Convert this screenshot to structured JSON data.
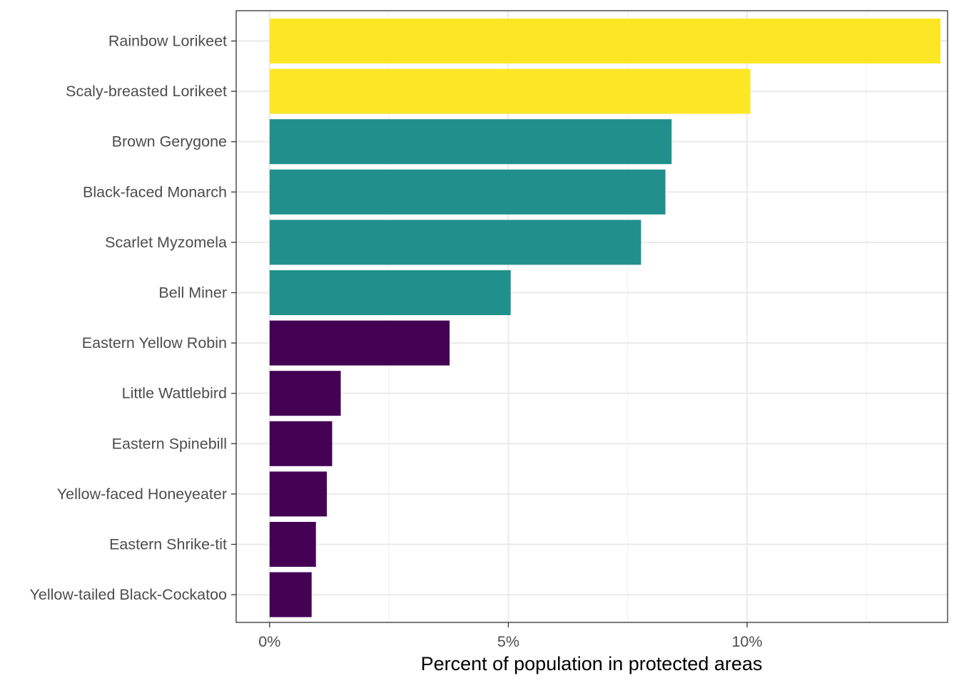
{
  "chart_data": {
    "type": "bar",
    "orientation": "horizontal",
    "title": "",
    "xlabel": "Percent of population in protected areas",
    "ylabel": "",
    "xlim": [
      -0.7,
      14.2
    ],
    "x_ticks": [
      0,
      5,
      10
    ],
    "x_tick_labels": [
      "0%",
      "5%",
      "10%"
    ],
    "grid": true,
    "legend": "none",
    "categories": [
      "Rainbow Lorikeet",
      "Scaly-breasted Lorikeet",
      "Brown Gerygone",
      "Black-faced Monarch",
      "Scarlet Myzomela",
      "Bell Miner",
      "Eastern Yellow Robin",
      "Little Wattlebird",
      "Eastern Spinebill",
      "Yellow-faced Honeyeater",
      "Eastern Shrike-tit",
      "Yellow-tailed Black-Cockatoo"
    ],
    "values": [
      14.05,
      10.07,
      8.42,
      8.29,
      7.78,
      5.05,
      3.77,
      1.49,
      1.31,
      1.2,
      0.97,
      0.88
    ],
    "bar_colors": [
      "#FDE725",
      "#FDE725",
      "#21908C",
      "#21908C",
      "#21908C",
      "#21908C",
      "#440154",
      "#440154",
      "#440154",
      "#440154",
      "#440154",
      "#440154"
    ]
  },
  "colors": {
    "panel_border": "#333333",
    "grid_major": "#EBEBEB",
    "grid_minor": "#F2F2F2",
    "tick_label": "#4D4D4D",
    "axis_title": "#000000"
  }
}
